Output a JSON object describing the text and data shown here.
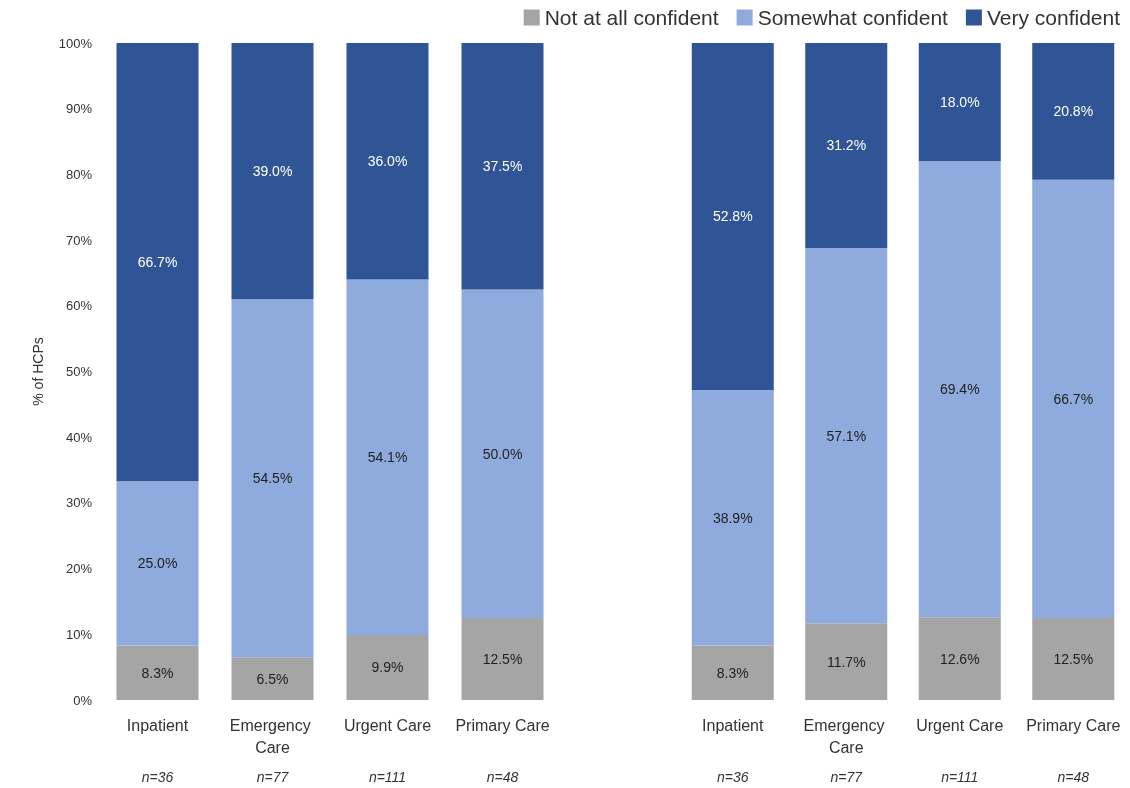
{
  "chart_data": [
    {
      "type": "bar",
      "stacked": true,
      "ylabel": "% of HCPs",
      "categories": [
        "Inpatient",
        "Emergency Care",
        "Urgent Care",
        "Primary Care"
      ],
      "annotations": [
        "n=36",
        "n=77",
        "n=111",
        "n=48"
      ],
      "ylim": [
        0,
        100
      ],
      "yticks": [
        {
          "value": 0,
          "label": "0%"
        },
        {
          "value": 10,
          "label": "10%"
        },
        {
          "value": 20,
          "label": "20%"
        },
        {
          "value": 30,
          "label": "30%"
        },
        {
          "value": 40,
          "label": "40%"
        },
        {
          "value": 50,
          "label": "50%"
        },
        {
          "value": 60,
          "label": "60%"
        },
        {
          "value": 70,
          "label": "70%"
        },
        {
          "value": 80,
          "label": "80%"
        },
        {
          "value": 90,
          "label": "90%"
        },
        {
          "value": 100,
          "label": "100%"
        }
      ],
      "grid": false,
      "legend": "top right",
      "series": [
        {
          "name": "Not at all confident",
          "color": "#a5a5a5",
          "values": [
            8.3,
            6.5,
            9.9,
            12.5
          ],
          "value_labels": [
            "8.3%",
            "6.5%",
            "9.9%",
            "12.5%"
          ]
        },
        {
          "name": "Somewhat confident",
          "color": "#8faadc",
          "values": [
            25.0,
            54.5,
            54.1,
            50.0
          ],
          "value_labels": [
            "25.0%",
            "54.5%",
            "54.1%",
            "50.0%"
          ]
        },
        {
          "name": "Very confident",
          "color": "#2f5597",
          "values": [
            66.7,
            39.0,
            36.0,
            37.5
          ],
          "value_labels": [
            "66.7%",
            "39.0%",
            "36.0%",
            "37.5%"
          ]
        }
      ]
    },
    {
      "type": "bar",
      "stacked": true,
      "categories": [
        "Inpatient",
        "Emergency Care",
        "Urgent Care",
        "Primary Care"
      ],
      "annotations": [
        "n=36",
        "n=77",
        "n=111",
        "n=48"
      ],
      "ylim": [
        0,
        100
      ],
      "tick_labels": "x",
      "grid": false,
      "series": [
        {
          "color": "#a5a5a5",
          "values": [
            8.3,
            11.7,
            12.6,
            12.5
          ],
          "value_labels": [
            "8.3%",
            "11.7%",
            "12.6%",
            "12.5%"
          ]
        },
        {
          "color": "#8faadc",
          "values": [
            38.9,
            57.1,
            69.4,
            66.7
          ],
          "value_labels": [
            "38.9%",
            "57.1%",
            "69.4%",
            "66.7%"
          ]
        },
        {
          "color": "#2f5597",
          "values": [
            52.8,
            31.2,
            18.0,
            20.8
          ],
          "value_labels": [
            "52.8%",
            "31.2%",
            "18.0%",
            "20.8%"
          ]
        }
      ]
    }
  ]
}
